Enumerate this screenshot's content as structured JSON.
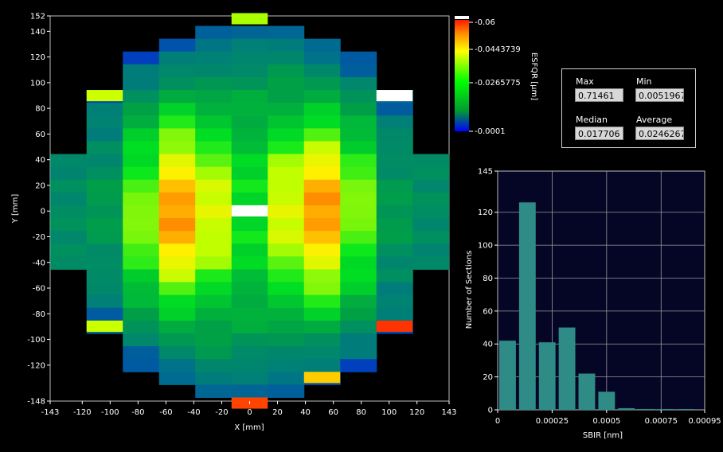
{
  "wafer_map": {
    "x_axis_label": "X [mm]",
    "y_axis_label": "Y [mm]",
    "x_ticks": [
      "-143",
      "-120",
      "-100",
      "-80",
      "-60",
      "-40",
      "-20",
      "0",
      "20",
      "40",
      "60",
      "80",
      "100",
      "120",
      "143"
    ],
    "y_ticks": [
      "152",
      "140",
      "120",
      "100",
      "80",
      "60",
      "40",
      "20",
      "0",
      "-20",
      "-40",
      "-60",
      "-80",
      "-100",
      "-120",
      "-148"
    ],
    "colorbar": {
      "title": "ESFQR [µm]",
      "ticks": [
        "-0.06",
        "-0.0443739",
        "-0.0265775",
        "-0.0001"
      ]
    }
  },
  "stats": {
    "max_label": "Max",
    "max_value": "0.71461",
    "min_label": "Min",
    "min_value": "0.00519671",
    "median_label": "Median",
    "median_value": "0.017706",
    "average_label": "Average",
    "average_value": "0.0246267"
  },
  "chart_data": {
    "type": "bar",
    "title": "",
    "xlabel": "SBIR [nm]",
    "ylabel": "Number of Sections",
    "x_tick_labels": [
      "0",
      "0.00025",
      "0.0005",
      "0.00075",
      "0.00095"
    ],
    "y_tick_labels": [
      "0",
      "20",
      "40",
      "60",
      "80",
      "100",
      "120",
      "145"
    ],
    "xlim": [
      0,
      0.00095
    ],
    "ylim": [
      0,
      145
    ],
    "bar_width": 9.09e-05,
    "bins": [
      4.55e-05,
      0.0001364,
      0.0002273,
      0.0003182,
      0.0004091,
      0.0005,
      0.0005909,
      0.0006818,
      0.0007727,
      0.0008636
    ],
    "values": [
      42,
      126,
      41,
      50,
      22,
      11,
      1,
      0.5,
      0.5,
      0.5
    ],
    "bar_color": "#2e8b86"
  },
  "colors": {
    "background": "#000000",
    "plot_background": "#050526"
  }
}
